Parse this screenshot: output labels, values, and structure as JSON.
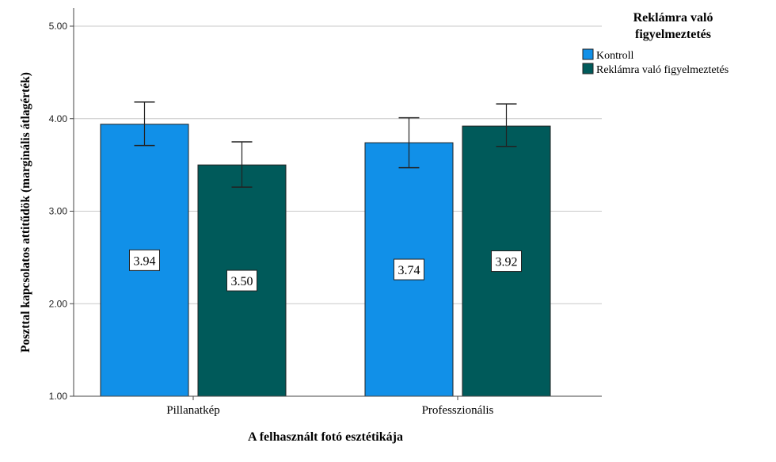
{
  "chart_data": {
    "type": "bar",
    "title": "",
    "xlabel": "A felhasznált fotó esztétikája",
    "ylabel": "Poszttal kapcsolatos attitűdök (marginális átlagérték)",
    "ylim": [
      1.0,
      5.0
    ],
    "yticks": [
      "1.00",
      "2.00",
      "3.00",
      "4.00",
      "5.00"
    ],
    "grid": true,
    "categories": [
      "Pillanatkép",
      "Professzionális"
    ],
    "legend": {
      "title": "Reklámra való figyelmeztetés",
      "placement": "top-right"
    },
    "series": [
      {
        "name": "Kontroll",
        "color": "#1190E8",
        "values": [
          3.94,
          3.74
        ],
        "labels": [
          "3.94",
          "3.74"
        ],
        "error_low": [
          3.71,
          3.47
        ],
        "error_high": [
          4.18,
          4.01
        ]
      },
      {
        "name": "Reklámra való figyelmeztetés",
        "color": "#005A5A",
        "values": [
          3.5,
          3.92
        ],
        "labels": [
          "3.50",
          "3.92"
        ],
        "error_low": [
          3.26,
          3.7
        ],
        "error_high": [
          3.75,
          4.16
        ]
      }
    ]
  }
}
